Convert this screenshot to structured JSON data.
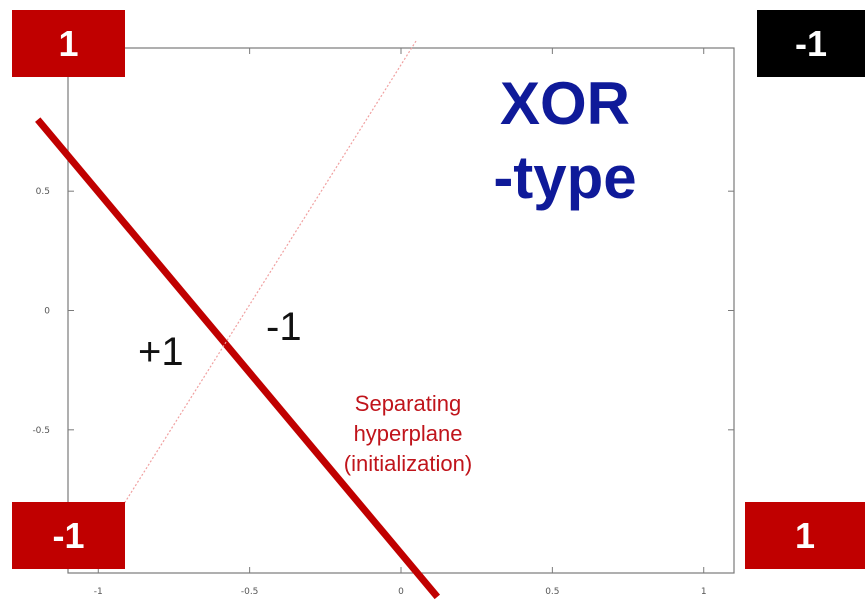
{
  "title": {
    "line1": "XOR",
    "line2": "-type"
  },
  "corners": {
    "top_left": "1",
    "top_right": "-1",
    "bottom_left": "-1",
    "bottom_right": "1"
  },
  "region_labels": {
    "plus": "+1",
    "minus": "-1"
  },
  "annotation": {
    "line1": "Separating",
    "line2": "hyperplane",
    "line3": "(initialization)"
  },
  "colors": {
    "hyperplane": "#c00000",
    "title": "#0f1a99",
    "annotation": "#c0141b",
    "corner_positive": "#c00000",
    "corner_negative_black": "#000000"
  },
  "chart_data": {
    "type": "line",
    "xlim": [
      -1.1,
      1.1
    ],
    "ylim": [
      -1.1,
      1.1
    ],
    "x_ticks": [
      "-1",
      "-0.5",
      "0",
      "0.5",
      "1"
    ],
    "y_ticks": [
      "0.5",
      "0",
      "-0.5"
    ],
    "series": [
      {
        "role": "hyperplane",
        "x": [
          -1.2,
          0.12
        ],
        "y": [
          0.8,
          -1.2
        ]
      },
      {
        "role": "dotted-boundary",
        "x": [
          -0.92,
          0.05
        ],
        "y": [
          -0.82,
          1.13
        ]
      }
    ]
  }
}
